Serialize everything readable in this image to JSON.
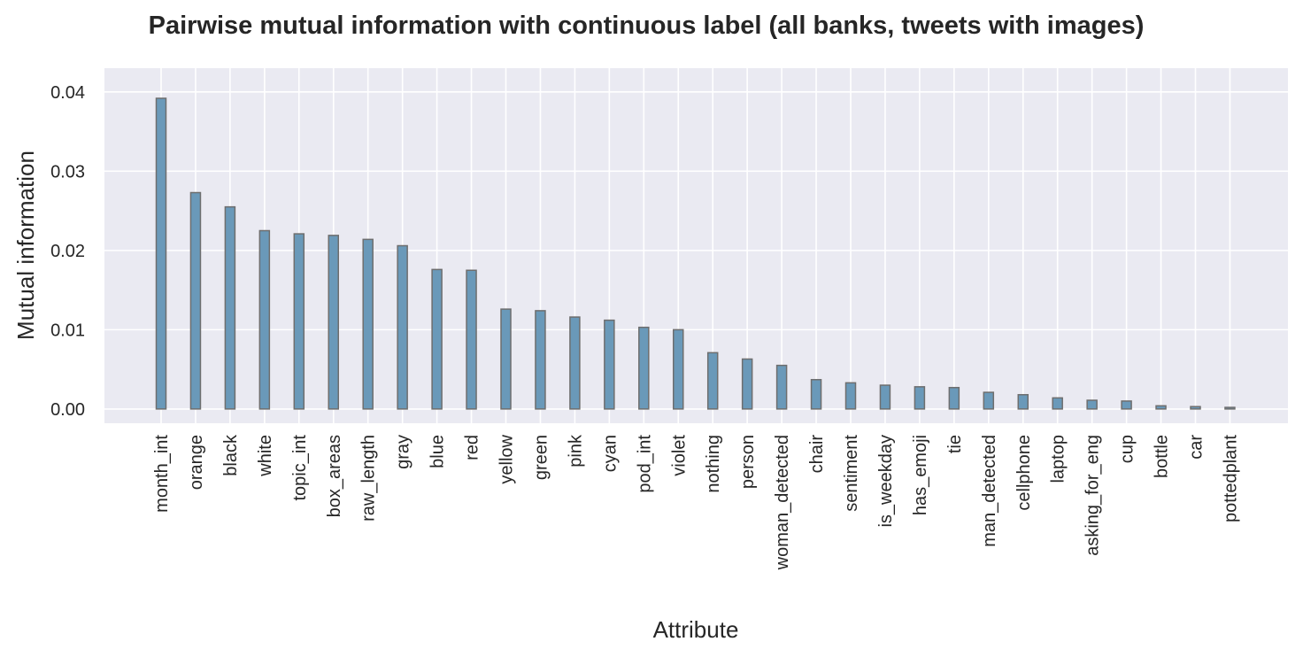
{
  "chart_data": {
    "type": "bar",
    "title": "Pairwise mutual information with continuous label (all banks, tweets with images)",
    "xlabel": "Attribute",
    "ylabel": "Mutual information",
    "ylim": [
      -0.0018,
      0.043
    ],
    "yticks": [
      0.0,
      0.01,
      0.02,
      0.03,
      0.04
    ],
    "ytick_labels": [
      "0.00",
      "0.01",
      "0.02",
      "0.03",
      "0.04"
    ],
    "grid": true,
    "bar_color": "#6a99b9",
    "background_color": "#eaeaf2",
    "categories": [
      "month_int",
      "orange",
      "black",
      "white",
      "topic_int",
      "box_areas",
      "raw_length",
      "gray",
      "blue",
      "red",
      "yellow",
      "green",
      "pink",
      "cyan",
      "pod_int",
      "violet",
      "nothing",
      "person",
      "woman_detected",
      "chair",
      "sentiment",
      "is_weekday",
      "has_emoji",
      "tie",
      "man_detected",
      "cellphone",
      "laptop",
      "asking_for_eng",
      "cup",
      "bottle",
      "car",
      "pottedplant"
    ],
    "values": [
      0.0392,
      0.0273,
      0.0255,
      0.0225,
      0.0221,
      0.0219,
      0.0214,
      0.0206,
      0.0176,
      0.0175,
      0.0126,
      0.0124,
      0.0116,
      0.0112,
      0.0103,
      0.01,
      0.0071,
      0.0063,
      0.0055,
      0.0037,
      0.0033,
      0.003,
      0.0028,
      0.0027,
      0.0021,
      0.0018,
      0.0014,
      0.0011,
      0.001,
      0.0004,
      0.0003,
      0.0002
    ]
  }
}
